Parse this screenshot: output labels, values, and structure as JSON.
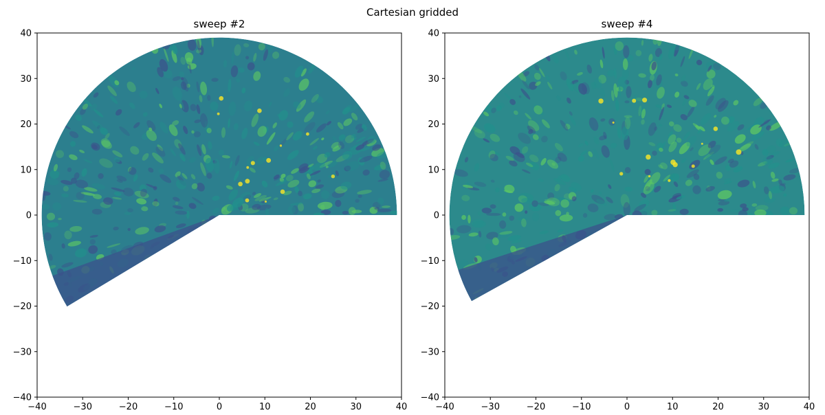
{
  "figure": {
    "suptitle": "Cartesian gridded"
  },
  "chart_data": [
    {
      "type": "heatmap",
      "title": "sweep #2",
      "xlabel": "",
      "ylabel": "",
      "xlim": [
        -40,
        40
      ],
      "ylim": [
        -40,
        40
      ],
      "xticks": [
        -40,
        -30,
        -20,
        -10,
        0,
        10,
        20,
        30,
        40
      ],
      "yticks": [
        -40,
        -30,
        -20,
        -10,
        0,
        10,
        20,
        30,
        40
      ],
      "grid": false,
      "colormap": "viridis",
      "data_extent": {
        "max_range": 39,
        "azimuth_from_deg": 0,
        "azimuth_to_deg": 211,
        "gap_from_deg": 211,
        "gap_to_deg": 360
      },
      "colors": {
        "background": "#2c7f8e",
        "low": "#3b528b",
        "mid": "#21918c",
        "high": "#5ec962",
        "peak": "#fde725"
      }
    },
    {
      "type": "heatmap",
      "title": "sweep #4",
      "xlabel": "",
      "ylabel": "",
      "xlim": [
        -40,
        40
      ],
      "ylim": [
        -40,
        40
      ],
      "xticks": [
        -40,
        -30,
        -20,
        -10,
        0,
        10,
        20,
        30,
        40
      ],
      "yticks": [
        -40,
        -30,
        -20,
        -10,
        0,
        10,
        20,
        30,
        40
      ],
      "grid": false,
      "colormap": "viridis",
      "data_extent": {
        "max_range": 39,
        "azimuth_from_deg": 0,
        "azimuth_to_deg": 209,
        "gap_from_deg": 209,
        "gap_to_deg": 360
      },
      "colors": {
        "background": "#2c8a8c",
        "low": "#3b528b",
        "mid": "#21918c",
        "high": "#5ec962",
        "peak": "#fde725"
      }
    }
  ]
}
